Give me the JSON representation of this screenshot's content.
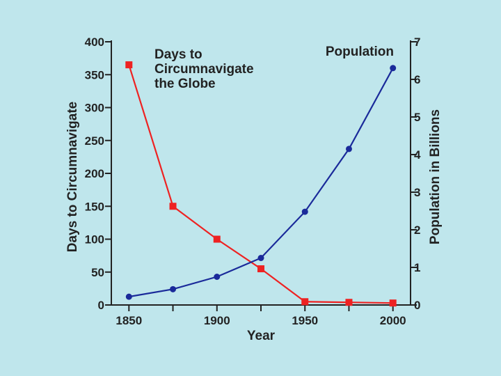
{
  "chart_data": {
    "type": "line",
    "title": "",
    "xlabel": "Year",
    "ylabel_left": "Days to Circumnavigate",
    "ylabel_right": "Population in Billions",
    "x_ticks": [
      1850,
      1875,
      1900,
      1925,
      1950,
      1975,
      2000
    ],
    "x_tick_labels": [
      "1850",
      "1900",
      "1950",
      "2000"
    ],
    "xlim": [
      1840,
      2010
    ],
    "ylim_left": [
      0,
      400
    ],
    "y_ticks_left": [
      "0",
      "50",
      "100",
      "150",
      "200",
      "250",
      "300",
      "350",
      "400"
    ],
    "ylim_right": [
      0,
      7
    ],
    "y_ticks_right": [
      "0",
      "1",
      "2",
      "3",
      "4",
      "5",
      "6",
      "7"
    ],
    "series": [
      {
        "name": "Days to Circumnavigate the Globe",
        "label_lines": [
          "Days to",
          "Circumnavigate",
          "the Globe"
        ],
        "axis": "left",
        "color": "#ee2222",
        "marker": "square",
        "x": [
          1850,
          1875,
          1900,
          1925,
          1950,
          1975,
          2000
        ],
        "values": [
          365,
          150,
          100,
          55,
          5,
          4,
          3
        ]
      },
      {
        "name": "Population",
        "label_lines": [
          "Population"
        ],
        "axis": "right",
        "color": "#1a2a9a",
        "marker": "circle",
        "x": [
          1850,
          1875,
          1900,
          1925,
          1950,
          1975,
          2000
        ],
        "values": [
          0.22,
          0.42,
          0.75,
          1.25,
          2.48,
          4.15,
          6.3
        ]
      }
    ]
  }
}
